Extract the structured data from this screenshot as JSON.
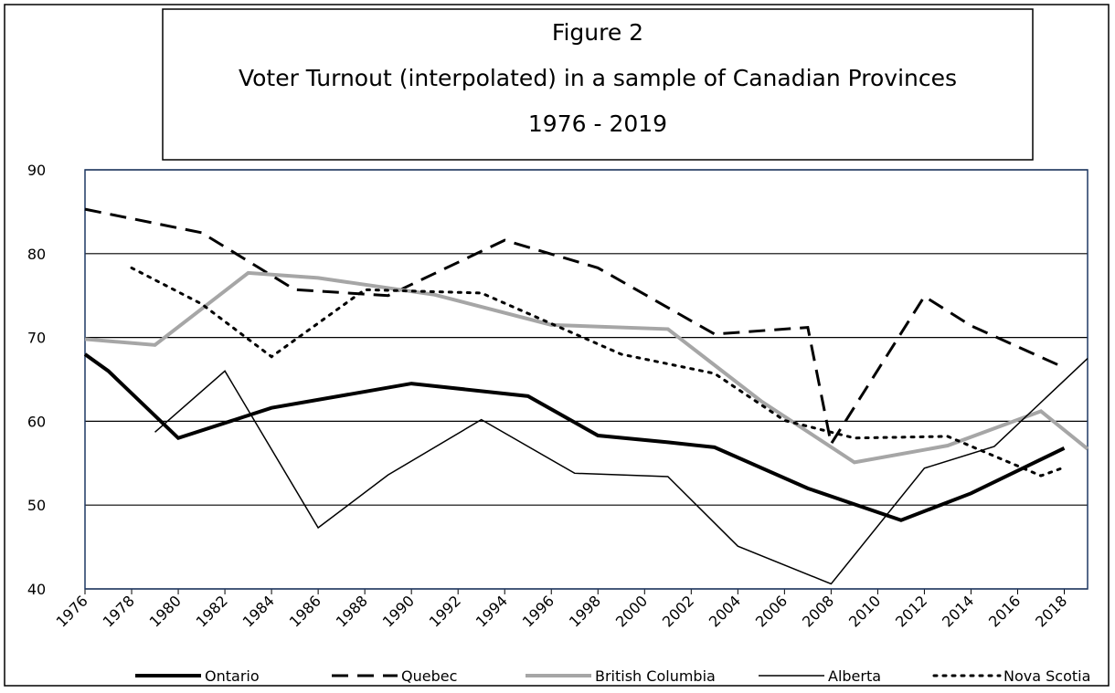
{
  "chart_data": {
    "type": "line",
    "title": [
      "Figure 2",
      "Voter Turnout (interpolated) in a sample of Canadian Provinces",
      "1976 - 2019"
    ],
    "xlim": [
      1976,
      2019
    ],
    "xticks": [
      1976,
      1978,
      1980,
      1982,
      1984,
      1986,
      1988,
      1990,
      1992,
      1994,
      1996,
      1998,
      2000,
      2002,
      2004,
      2006,
      2008,
      2010,
      2012,
      2014,
      2016,
      2018
    ],
    "ylim": [
      40,
      90
    ],
    "yticks": [
      40,
      50,
      60,
      70,
      80,
      90
    ],
    "grid": true,
    "legend": "bottom",
    "series": [
      {
        "name": "Ontario",
        "color": "#000000",
        "width": 4,
        "dash": "none",
        "x": [
          1976,
          1977,
          1980,
          1984,
          1990,
          1995,
          1998,
          2001,
          2003,
          2007,
          2011,
          2014,
          2018
        ],
        "values": [
          68,
          66,
          58,
          61.6,
          64.5,
          63,
          58.3,
          57.5,
          56.9,
          52,
          48.2,
          51.4,
          56.8
        ]
      },
      {
        "name": "Quebec",
        "color": "#000000",
        "width": 3,
        "dash": "dashed",
        "x": [
          1976,
          1981,
          1985,
          1989,
          1994,
          1998,
          2003,
          2007,
          2008,
          2012,
          2014,
          2018
        ],
        "values": [
          85.3,
          82.5,
          75.7,
          75,
          81.6,
          78.3,
          70.4,
          71.2,
          57.3,
          74.9,
          71.4,
          66.4
        ]
      },
      {
        "name": "British Columbia",
        "color": "#a6a6a6",
        "width": 4,
        "dash": "none",
        "x": [
          1976,
          1979,
          1983,
          1986,
          1991,
          1996,
          2001,
          2005,
          2009,
          2013,
          2017,
          2019
        ],
        "values": [
          69.8,
          69.1,
          77.7,
          77.1,
          75.1,
          71.5,
          71,
          62.4,
          55.1,
          57.1,
          61.2,
          56.7
        ]
      },
      {
        "name": "Alberta",
        "color": "#000000",
        "width": 1.5,
        "dash": "none",
        "x": [
          1979,
          1982,
          1986,
          1989,
          1993,
          1997,
          2001,
          2004,
          2008,
          2012,
          2015,
          2019
        ],
        "values": [
          58.7,
          66,
          47.3,
          53.6,
          60.2,
          53.8,
          53.4,
          45.1,
          40.6,
          54.4,
          57,
          67.5
        ]
      },
      {
        "name": "Nova Scotia",
        "color": "#000000",
        "width": 3,
        "dash": "dotted",
        "x": [
          1978,
          1981,
          1984,
          1988,
          1993,
          1999,
          2003,
          2006,
          2009,
          2013,
          2017,
          2018
        ],
        "values": [
          78.3,
          74,
          67.7,
          75.7,
          75.3,
          68,
          65.7,
          60.1,
          58,
          58.2,
          53.5,
          54.5
        ]
      }
    ]
  }
}
